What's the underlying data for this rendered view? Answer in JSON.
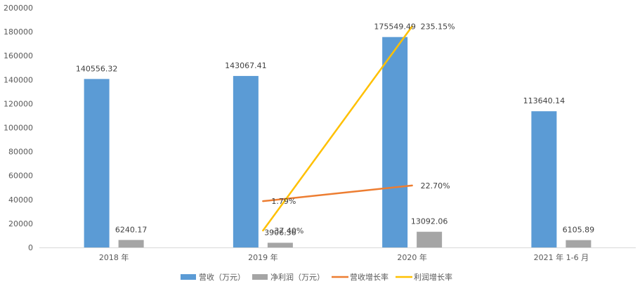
{
  "chart_data": {
    "type": "bar",
    "categories": [
      "2018 年",
      "2019 年",
      "2020 年",
      "2021 年 1-6 月"
    ],
    "series": [
      {
        "name": "营收（万元）",
        "kind": "bar",
        "color": "#5B9BD5",
        "values": [
          140556.32,
          143067.41,
          175549.49,
          113640.14
        ],
        "labels": [
          "140556.32",
          "143067.41",
          "175549.49",
          "113640.14"
        ]
      },
      {
        "name": "净利润（万元）",
        "kind": "bar",
        "color": "#A5A5A5",
        "values": [
          6240.17,
          3906.36,
          13092.06,
          6105.89
        ],
        "labels": [
          "6240.17",
          "3906.36",
          "13092.06",
          "6105.89"
        ]
      },
      {
        "name": "营收增长率",
        "kind": "line",
        "color": "#ED7D31",
        "values": [
          null,
          1.79,
          22.7,
          null
        ],
        "labels": [
          null,
          "1.79%",
          "22.70%",
          null
        ]
      },
      {
        "name": "利润增长率",
        "kind": "line",
        "color": "#FFC000",
        "values": [
          null,
          -37.4,
          235.15,
          null
        ],
        "labels": [
          null,
          "-37.40%",
          "235.15%",
          null
        ]
      }
    ],
    "yticks": [
      "0",
      "20000",
      "40000",
      "60000",
      "80000",
      "100000",
      "120000",
      "140000",
      "160000",
      "180000",
      "200000"
    ],
    "ylim": [
      0,
      200000
    ],
    "legend_position": "bottom",
    "grid": false
  }
}
